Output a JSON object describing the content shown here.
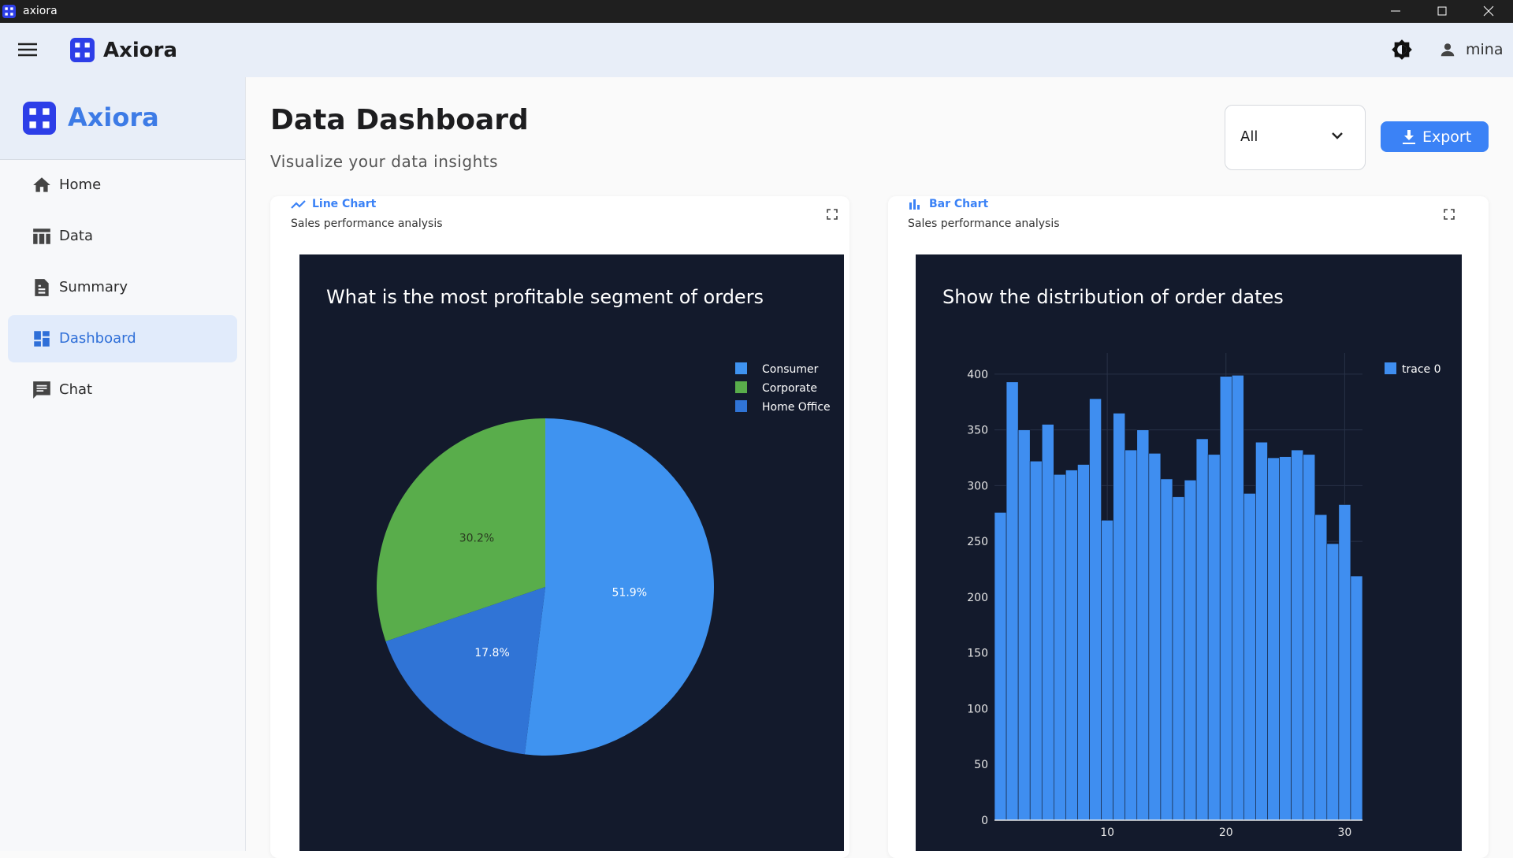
{
  "window": {
    "title": "axiora"
  },
  "header": {
    "brand": "Axiora",
    "user": "mina"
  },
  "sidebar": {
    "brand": "Axiora",
    "nav": [
      "Home",
      "Data",
      "Summary",
      "Dashboard",
      "Chat"
    ]
  },
  "page": {
    "title": "Data Dashboard",
    "subtitle": "Visualize your data insights",
    "filter": "All",
    "export": "Export"
  },
  "cards": [
    {
      "kind": "Line Chart",
      "subtitle": "Sales performance analysis"
    },
    {
      "kind": "Bar Chart",
      "subtitle": "Sales performance analysis"
    }
  ],
  "chart_data": [
    {
      "type": "pie",
      "title": "What is the most profitable segment of orders",
      "labels": [
        "Consumer",
        "Corporate",
        "Home Office"
      ],
      "values": [
        51.9,
        30.2,
        17.8
      ],
      "value_labels": [
        "51.9%",
        "30.2%",
        "17.8%"
      ],
      "colors": [
        "#3f93f0",
        "#59ad4b",
        "#3074d6"
      ]
    },
    {
      "type": "histogram",
      "title": "Show the distribution of order dates",
      "bins": [
        0.5,
        1.5,
        2.5,
        3.5,
        4.5,
        5.5,
        6.5,
        7.5,
        8.5,
        9.5,
        10.5,
        11.5,
        12.5,
        13.5,
        14.5,
        15.5,
        16.5,
        17.5,
        18.5,
        19.5,
        20.5,
        21.5,
        22.5,
        23.5,
        24.5,
        25.5,
        26.5,
        27.5,
        28.5,
        29.5,
        30.5,
        31.5
      ],
      "series": [
        {
          "name": "trace 0",
          "color": "#3f8ef0",
          "values": [
            276,
            393,
            350,
            322,
            355,
            310,
            314,
            319,
            378,
            269,
            365,
            332,
            350,
            329,
            306,
            290,
            305,
            342,
            328,
            398,
            399,
            293,
            339,
            325,
            326,
            332,
            328,
            274,
            248,
            283,
            219
          ]
        }
      ],
      "xlim": [
        0.5,
        31.5
      ],
      "ylim": [
        0,
        419
      ],
      "xticks": [
        10,
        20,
        30
      ],
      "yticks": [
        0,
        50,
        100,
        150,
        200,
        250,
        300,
        350,
        400
      ],
      "grid": true
    }
  ]
}
